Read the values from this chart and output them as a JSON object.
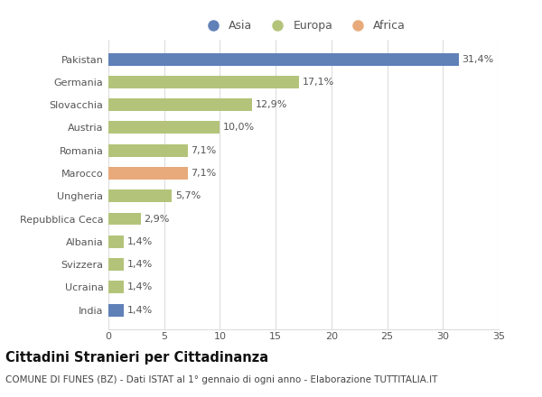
{
  "categories": [
    "India",
    "Ucraina",
    "Svizzera",
    "Albania",
    "Repubblica Ceca",
    "Ungheria",
    "Marocco",
    "Romania",
    "Austria",
    "Slovacchia",
    "Germania",
    "Pakistan"
  ],
  "values": [
    1.4,
    1.4,
    1.4,
    1.4,
    2.9,
    5.7,
    7.1,
    7.1,
    10.0,
    12.9,
    17.1,
    31.4
  ],
  "labels": [
    "1,4%",
    "1,4%",
    "1,4%",
    "1,4%",
    "2,9%",
    "5,7%",
    "7,1%",
    "7,1%",
    "10,0%",
    "12,9%",
    "17,1%",
    "31,4%"
  ],
  "colors": [
    "#6080b8",
    "#b3c47a",
    "#b3c47a",
    "#b3c47a",
    "#b3c47a",
    "#b3c47a",
    "#e8aa7a",
    "#b3c47a",
    "#b3c47a",
    "#b3c47a",
    "#b3c47a",
    "#6080b8"
  ],
  "legend": [
    {
      "label": "Asia",
      "color": "#6080b8"
    },
    {
      "label": "Europa",
      "color": "#b3c47a"
    },
    {
      "label": "Africa",
      "color": "#e8aa7a"
    }
  ],
  "xlim": [
    0,
    35
  ],
  "xticks": [
    0,
    5,
    10,
    15,
    20,
    25,
    30,
    35
  ],
  "title": "Cittadini Stranieri per Cittadinanza",
  "subtitle": "COMUNE DI FUNES (BZ) - Dati ISTAT al 1° gennaio di ogni anno - Elaborazione TUTTITALIA.IT",
  "bg_color": "#ffffff",
  "grid_color": "#dddddd",
  "bar_height": 0.55,
  "label_fontsize": 8.0,
  "tick_fontsize": 8.0,
  "title_fontsize": 10.5,
  "subtitle_fontsize": 7.5,
  "legend_fontsize": 9.0
}
